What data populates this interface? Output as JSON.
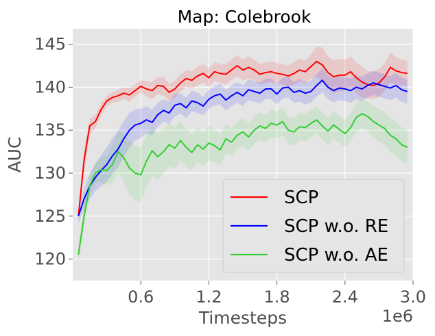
{
  "chart_data": {
    "type": "line",
    "title": "Map: Colebrook",
    "xlabel": "Timesteps",
    "ylabel": "AUC",
    "x_offset_label": "1e6",
    "xlim": [
      0.0,
      3.0
    ],
    "ylim": [
      117.5,
      146.8
    ],
    "x_ticks": [
      0.6,
      1.2,
      1.8,
      2.4,
      3.0
    ],
    "x_tick_labels": [
      "0.6",
      "1.2",
      "1.8",
      "2.4",
      "3.0"
    ],
    "y_ticks": [
      120,
      125,
      130,
      135,
      140,
      145
    ],
    "y_tick_labels": [
      "120",
      "125",
      "130",
      "135",
      "140",
      "145"
    ],
    "grid": true,
    "legend_position": "lower-right",
    "colors": {
      "background": "#e5e5e5",
      "grid": "#ffffff"
    },
    "x": [
      0.05,
      0.1,
      0.15,
      0.2,
      0.25,
      0.3,
      0.35,
      0.4,
      0.45,
      0.5,
      0.55,
      0.6,
      0.65,
      0.7,
      0.75,
      0.8,
      0.85,
      0.9,
      0.95,
      1.0,
      1.05,
      1.1,
      1.15,
      1.2,
      1.25,
      1.3,
      1.35,
      1.4,
      1.45,
      1.5,
      1.55,
      1.6,
      1.65,
      1.7,
      1.75,
      1.8,
      1.85,
      1.9,
      1.95,
      2.0,
      2.05,
      2.1,
      2.15,
      2.2,
      2.25,
      2.3,
      2.35,
      2.4,
      2.45,
      2.5,
      2.55,
      2.6,
      2.65,
      2.7,
      2.75,
      2.8,
      2.85,
      2.9,
      2.95
    ],
    "series": [
      {
        "name": "SCP",
        "color": "#ff0000",
        "band_color": "#ff0000",
        "values": [
          125.0,
          131.5,
          135.5,
          136.0,
          137.4,
          138.4,
          138.8,
          139.0,
          139.3,
          139.1,
          139.6,
          140.1,
          139.8,
          139.6,
          140.2,
          140.1,
          139.4,
          139.8,
          140.5,
          141.0,
          140.8,
          141.3,
          141.6,
          141.1,
          141.8,
          141.6,
          141.5,
          142.0,
          142.5,
          142.0,
          142.3,
          142.0,
          141.5,
          141.7,
          141.8,
          141.6,
          141.5,
          141.3,
          141.6,
          142.0,
          141.8,
          142.4,
          143.0,
          142.6,
          141.7,
          141.2,
          141.4,
          141.4,
          141.8,
          141.1,
          140.6,
          140.3,
          140.2,
          140.5,
          141.2,
          142.3,
          141.9,
          141.7,
          141.6
        ],
        "lower": [
          124.5,
          130.0,
          134.5,
          135.2,
          136.7,
          137.8,
          138.2,
          138.3,
          138.6,
          138.3,
          138.9,
          139.4,
          138.9,
          138.6,
          139.2,
          139.0,
          138.4,
          138.8,
          139.5,
          140.0,
          139.8,
          140.2,
          140.5,
          140.0,
          140.7,
          140.5,
          140.3,
          140.8,
          141.3,
          140.8,
          141.0,
          140.8,
          140.3,
          140.5,
          140.6,
          140.4,
          140.3,
          140.1,
          140.3,
          140.7,
          140.5,
          141.0,
          141.2,
          140.6,
          139.8,
          139.3,
          139.5,
          139.6,
          140.0,
          139.3,
          138.8,
          138.7,
          138.6,
          138.9,
          139.6,
          140.6,
          140.3,
          140.2,
          140.1
        ],
        "upper": [
          125.5,
          132.8,
          136.3,
          136.8,
          138.1,
          139.0,
          139.4,
          139.7,
          140.0,
          139.9,
          140.3,
          140.8,
          140.7,
          140.6,
          141.2,
          141.2,
          140.4,
          140.8,
          141.5,
          142.0,
          141.8,
          142.4,
          142.7,
          142.2,
          142.9,
          142.7,
          142.7,
          143.2,
          143.7,
          143.2,
          143.6,
          143.2,
          142.7,
          142.9,
          143.0,
          142.8,
          142.7,
          142.5,
          142.9,
          143.3,
          143.1,
          143.8,
          144.8,
          144.6,
          143.6,
          143.1,
          143.3,
          143.2,
          143.6,
          142.9,
          142.4,
          141.9,
          141.8,
          142.1,
          142.8,
          144.0,
          143.5,
          143.2,
          143.1
        ]
      },
      {
        "name": "SCP w.o. RE",
        "color": "#0000ff",
        "band_color": "#0000ff",
        "values": [
          125.0,
          127.0,
          128.5,
          129.5,
          130.3,
          131.0,
          132.0,
          132.8,
          134.0,
          135.0,
          135.6,
          135.8,
          136.2,
          135.9,
          136.8,
          137.3,
          137.0,
          137.9,
          138.1,
          137.6,
          138.4,
          138.2,
          137.8,
          138.6,
          139.0,
          139.2,
          138.5,
          139.0,
          139.4,
          139.0,
          139.7,
          139.5,
          139.3,
          139.8,
          139.8,
          139.2,
          139.9,
          140.0,
          139.4,
          139.6,
          139.3,
          139.5,
          140.2,
          140.8,
          140.0,
          139.6,
          139.9,
          139.8,
          139.6,
          140.0,
          139.8,
          140.2,
          140.5,
          140.3,
          140.1,
          139.9,
          140.2,
          139.7,
          139.5
        ],
        "lower": [
          124.2,
          125.8,
          127.0,
          127.9,
          128.5,
          129.0,
          129.9,
          130.7,
          131.9,
          133.0,
          133.8,
          134.1,
          134.6,
          134.4,
          135.4,
          136.0,
          135.7,
          136.6,
          136.9,
          136.4,
          137.2,
          137.0,
          136.7,
          137.5,
          137.9,
          138.0,
          137.3,
          137.8,
          138.2,
          137.8,
          138.5,
          138.3,
          138.1,
          138.6,
          138.6,
          138.0,
          138.7,
          138.8,
          138.2,
          138.3,
          138.0,
          138.2,
          138.9,
          139.4,
          138.6,
          138.2,
          138.5,
          138.4,
          138.2,
          138.6,
          138.4,
          138.8,
          139.1,
          138.9,
          138.7,
          138.5,
          138.8,
          138.3,
          138.1
        ],
        "upper": [
          125.8,
          128.2,
          130.0,
          131.1,
          132.1,
          133.0,
          134.1,
          134.9,
          136.1,
          137.0,
          137.4,
          137.5,
          137.8,
          137.4,
          138.2,
          138.6,
          138.3,
          139.2,
          139.3,
          138.8,
          139.6,
          139.4,
          138.9,
          139.7,
          140.1,
          140.4,
          139.7,
          140.2,
          140.6,
          140.2,
          140.9,
          140.7,
          140.5,
          141.0,
          141.0,
          140.4,
          141.1,
          141.2,
          140.6,
          140.9,
          140.6,
          140.8,
          141.5,
          142.2,
          141.4,
          141.0,
          141.3,
          141.2,
          141.0,
          141.4,
          141.2,
          141.6,
          141.9,
          141.7,
          141.5,
          141.3,
          141.6,
          141.1,
          140.9
        ]
      },
      {
        "name": "SCP w.o. AE",
        "color": "#32cd32",
        "band_color": "#32cd32",
        "values": [
          120.5,
          125.0,
          128.5,
          130.0,
          130.4,
          130.3,
          131.0,
          132.5,
          131.8,
          130.6,
          130.0,
          129.8,
          131.4,
          132.6,
          131.9,
          132.5,
          133.3,
          132.9,
          133.8,
          133.0,
          132.4,
          133.3,
          132.8,
          133.5,
          133.2,
          132.7,
          134.0,
          133.6,
          134.4,
          134.8,
          134.2,
          135.0,
          135.5,
          135.2,
          135.8,
          135.6,
          136.0,
          135.0,
          134.8,
          135.4,
          135.3,
          135.8,
          136.2,
          135.5,
          134.9,
          135.6,
          135.1,
          134.6,
          135.3,
          136.5,
          136.9,
          136.6,
          136.0,
          135.6,
          135.2,
          134.4,
          134.0,
          133.3,
          133.0
        ],
        "lower": [
          119.5,
          123.8,
          127.3,
          128.8,
          129.0,
          128.6,
          128.8,
          130.0,
          129.0,
          127.5,
          126.8,
          126.6,
          128.4,
          129.7,
          129.2,
          129.9,
          130.8,
          130.5,
          131.5,
          130.8,
          130.3,
          131.3,
          130.8,
          131.5,
          131.3,
          130.9,
          132.3,
          132.0,
          132.8,
          133.2,
          132.6,
          133.4,
          133.9,
          133.6,
          134.2,
          134.0,
          134.4,
          133.4,
          133.2,
          133.8,
          133.7,
          134.2,
          134.6,
          133.9,
          133.3,
          134.0,
          133.5,
          133.0,
          133.7,
          134.8,
          135.2,
          134.9,
          134.2,
          133.7,
          133.3,
          132.4,
          132.0,
          131.3,
          131.0
        ],
        "upper": [
          121.5,
          126.2,
          129.7,
          131.2,
          131.8,
          132.0,
          133.2,
          135.0,
          134.6,
          133.7,
          133.2,
          133.0,
          134.4,
          135.5,
          134.6,
          135.1,
          135.8,
          135.3,
          136.1,
          135.2,
          134.5,
          135.3,
          134.8,
          135.5,
          135.1,
          134.5,
          135.7,
          135.2,
          136.0,
          136.4,
          135.8,
          136.6,
          137.1,
          136.8,
          137.4,
          137.2,
          137.6,
          136.6,
          136.4,
          137.0,
          136.9,
          137.4,
          137.8,
          137.1,
          136.5,
          137.2,
          136.7,
          136.2,
          136.9,
          138.2,
          138.6,
          138.3,
          137.8,
          137.5,
          137.1,
          136.4,
          136.0,
          135.3,
          135.0
        ]
      }
    ]
  }
}
